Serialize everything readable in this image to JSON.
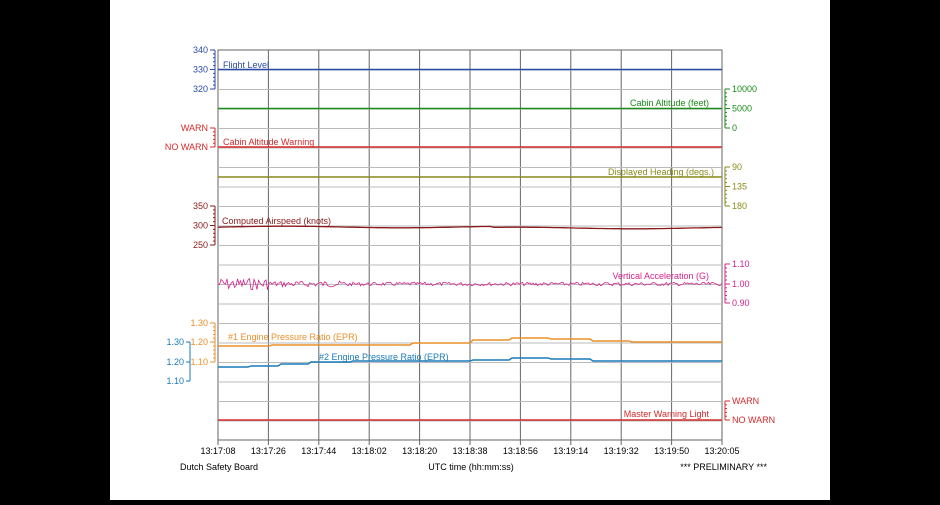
{
  "footer": {
    "left": "Dutch Safety Board",
    "center": "UTC time (hh:mm:ss)",
    "right": "*** PRELIMINARY ***"
  },
  "chart_data": {
    "type": "line",
    "xlabel": "UTC time (hh:mm:ss)",
    "x_ticks": [
      "13:17:08",
      "13:17:26",
      "13:17:44",
      "13:18:02",
      "13:18:20",
      "13:18:38",
      "13:18:56",
      "13:19:14",
      "13:19:32",
      "13:19:50",
      "13:20:05"
    ],
    "grid": true,
    "colors": {
      "flight_level": "#2a4aa8",
      "cabin_alt": "#1a8a1a",
      "cabin_warn": "#d42a2a",
      "heading": "#8a8a1a",
      "airspeed": "#8a1a1a",
      "vert_acc": "#d4248a",
      "epr1": "#e8902a",
      "epr2": "#1a7ab8",
      "master": "#d42a2a"
    },
    "series": [
      {
        "name": "Flight Level",
        "axis_ticks": [
          "340",
          "330",
          "320"
        ],
        "ylim": [
          320,
          340
        ],
        "value": 330
      },
      {
        "name": "Cabin Altitude (feet)",
        "axis_ticks": [
          "10000",
          "5000",
          "0"
        ],
        "ylim": [
          0,
          10000
        ],
        "value": 5000
      },
      {
        "name": "Cabin Altitude Warning",
        "axis_ticks": [
          "WARN",
          "NO WARN"
        ],
        "value": "NO WARN"
      },
      {
        "name": "Displayed Heading (degs.)",
        "axis_ticks": [
          "90",
          "135",
          "180"
        ],
        "ylim": [
          90,
          180
        ],
        "value": 118
      },
      {
        "name": "Computed Airspeed (knots)",
        "axis_ticks": [
          "350",
          "300",
          "250"
        ],
        "ylim": [
          250,
          350
        ],
        "value": 298
      },
      {
        "name": "Vertical Acceleration (G)",
        "axis_ticks": [
          "1.10",
          "1.00",
          "0.90"
        ],
        "ylim": [
          0.9,
          1.1
        ],
        "value": 1.0
      },
      {
        "name": "#1 Engine Pressure Ratio (EPR)",
        "axis_ticks": [
          "1.30",
          "1.20",
          "1.10"
        ],
        "ylim": [
          1.1,
          1.3
        ],
        "value": 1.18
      },
      {
        "name": "#2 Engine Pressure Ratio (EPR)",
        "axis_ticks": [
          "1.30",
          "1.20",
          "1.10"
        ],
        "ylim": [
          1.1,
          1.3
        ],
        "value": 1.18
      },
      {
        "name": "Master Warning Light",
        "axis_ticks": [
          "WARN",
          "NO WARN"
        ],
        "value": "NO WARN"
      }
    ]
  }
}
